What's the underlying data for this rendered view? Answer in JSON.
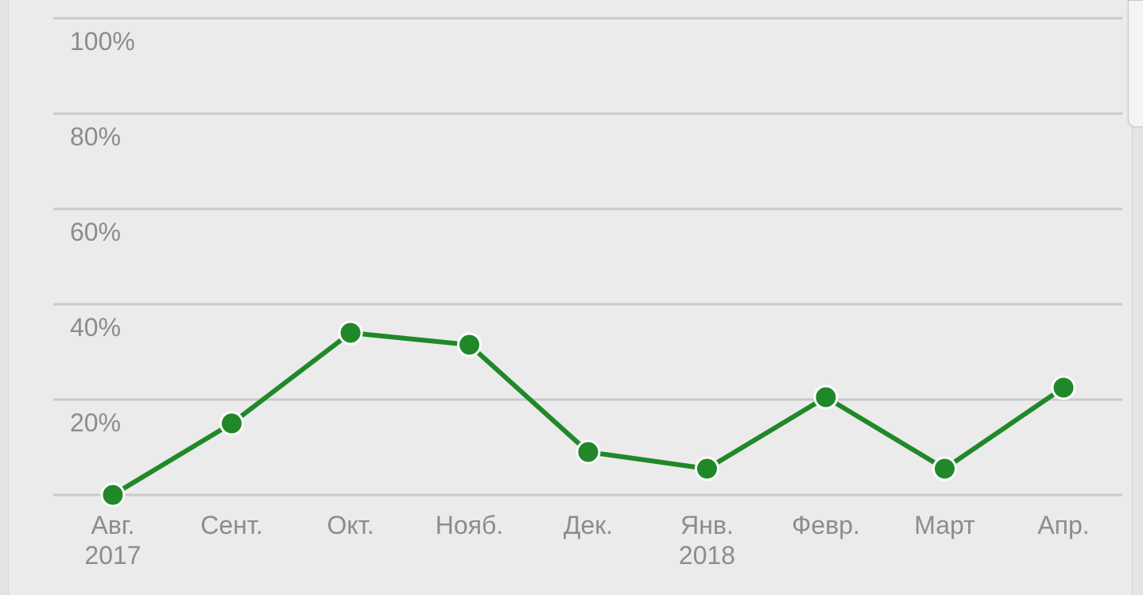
{
  "chart_data": {
    "type": "line",
    "x": [
      "Авг.\n2017",
      "Сент.",
      "Окт.",
      "Нояб.",
      "Дек.",
      "Янв.\n2018",
      "Февр.",
      "Март",
      "Апр."
    ],
    "series": [
      {
        "values": [
          0,
          15,
          34,
          31.5,
          9,
          5.5,
          20.5,
          5.5,
          22.5
        ]
      }
    ],
    "yticks": [
      "100%",
      "80%",
      "60%",
      "40%",
      "20%"
    ],
    "ylim": [
      0,
      100
    ],
    "grid": true,
    "colors": {
      "series": "#21882a",
      "grid": "#cacaca",
      "text": "#8c8c8c",
      "background": "#ebebeb"
    }
  }
}
